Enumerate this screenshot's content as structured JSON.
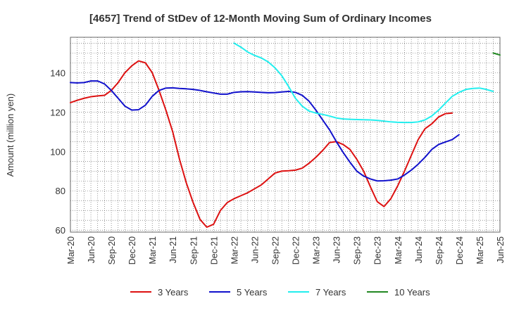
{
  "chart_data": {
    "type": "line",
    "title": "[4657]  Trend of StDev of 12-Month Moving Sum of Ordinary Incomes",
    "ylabel": "Amount (million yen)",
    "xlabel": "",
    "ylim": [
      59,
      158
    ],
    "y_ticks": [
      60,
      80,
      100,
      120,
      140
    ],
    "x_tick_labels": [
      "Mar-20",
      "Jun-20",
      "Sep-20",
      "Dec-20",
      "Mar-21",
      "Jun-21",
      "Sep-21",
      "Dec-21",
      "Mar-22",
      "Jun-22",
      "Sep-22",
      "Dec-22",
      "Mar-23",
      "Jun-23",
      "Sep-23",
      "Dec-23",
      "Mar-24",
      "Jun-24",
      "Sep-24",
      "Dec-24",
      "Mar-25",
      "Jun-25"
    ],
    "grid": true,
    "legend_position": "bottom",
    "series": [
      {
        "name": "3 Years",
        "color": "#dd1111",
        "values": [
          124.8,
          126.0,
          127.0,
          127.8,
          128.2,
          128.5,
          131.0,
          135.0,
          140.0,
          143.5,
          146.0,
          145.0,
          140.0,
          131.0,
          121.0,
          110.0,
          96.0,
          84.0,
          74.0,
          65.5,
          61.5,
          63.0,
          70.0,
          74.0,
          76.0,
          77.5,
          79.0,
          81.0,
          83.0,
          86.0,
          89.0,
          90.0,
          90.2,
          90.5,
          91.5,
          94.0,
          97.0,
          100.5,
          104.5,
          105.0,
          103.5,
          101.0,
          96.0,
          90.0,
          82.0,
          74.5,
          72.0,
          76.0,
          82.5,
          90.0,
          98.0,
          106.0,
          111.5,
          114.0,
          117.5,
          119.2,
          119.5
        ]
      },
      {
        "name": "5 Years",
        "color": "#1111cc",
        "values": [
          135.0,
          134.8,
          135.0,
          135.8,
          135.8,
          134.3,
          131.0,
          127.0,
          123.0,
          121.0,
          121.2,
          123.5,
          128.0,
          131.0,
          132.2,
          132.3,
          132.0,
          131.8,
          131.5,
          131.0,
          130.3,
          129.7,
          129.1,
          129.1,
          130.0,
          130.3,
          130.4,
          130.2,
          130.0,
          129.8,
          129.9,
          130.2,
          130.5,
          130.0,
          128.5,
          125.5,
          121.0,
          116.0,
          111.0,
          105.0,
          99.5,
          94.5,
          90.0,
          87.5,
          86.0,
          85.0,
          85.1,
          85.4,
          86.0,
          88.0,
          90.5,
          93.5,
          97.0,
          101.0,
          103.5,
          104.8,
          106.0,
          108.5
        ]
      },
      {
        "name": "7 Years",
        "color": "#22eeee",
        "values": [
          155.0,
          153.0,
          150.5,
          148.8,
          147.5,
          145.5,
          142.5,
          138.5,
          133.0,
          127.0,
          123.0,
          120.5,
          119.5,
          118.8,
          118.0,
          117.0,
          116.5,
          116.3,
          116.2,
          116.1,
          116.0,
          115.8,
          115.4,
          115.0,
          114.8,
          114.7,
          114.7,
          115.0,
          116.0,
          118.0,
          121.0,
          124.5,
          128.0,
          130.0,
          131.5,
          132.0,
          132.2,
          131.5,
          130.5
        ]
      },
      {
        "name": "10 Years",
        "color": "#228822",
        "values": [
          150.0,
          149.0
        ]
      }
    ]
  }
}
